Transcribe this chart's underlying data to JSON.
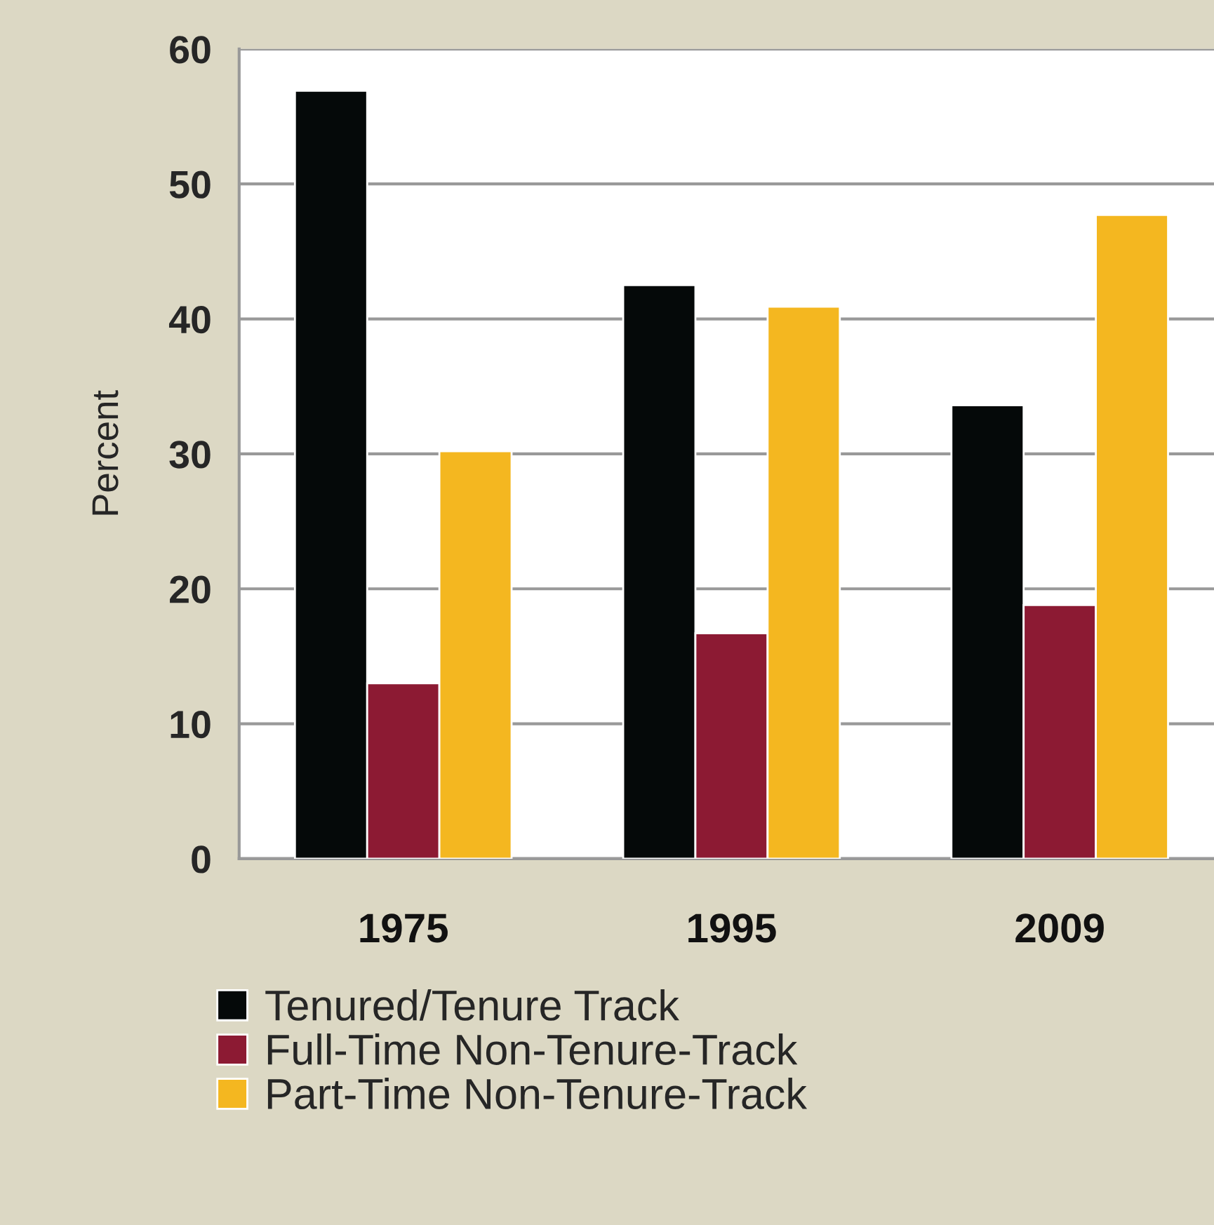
{
  "chart_data": {
    "type": "bar",
    "ylabel": "Percent",
    "categories": [
      "1975",
      "1995",
      "2009"
    ],
    "series": [
      {
        "name": "Tenured/Tenure Track",
        "color": "#050909",
        "values": [
          56.9,
          42.5,
          33.6
        ]
      },
      {
        "name": "Full-Time Non-Tenure-Track",
        "color": "#8c1a33",
        "values": [
          13.0,
          16.7,
          18.8
        ]
      },
      {
        "name": "Part-Time Non-Tenure-Track",
        "color": "#f4b720",
        "values": [
          30.2,
          40.9,
          47.7
        ]
      }
    ],
    "ylim": [
      0,
      60
    ],
    "yticks": [
      0,
      10,
      20,
      30,
      40,
      50,
      60
    ],
    "grid": "y",
    "legend": "bottom left"
  }
}
